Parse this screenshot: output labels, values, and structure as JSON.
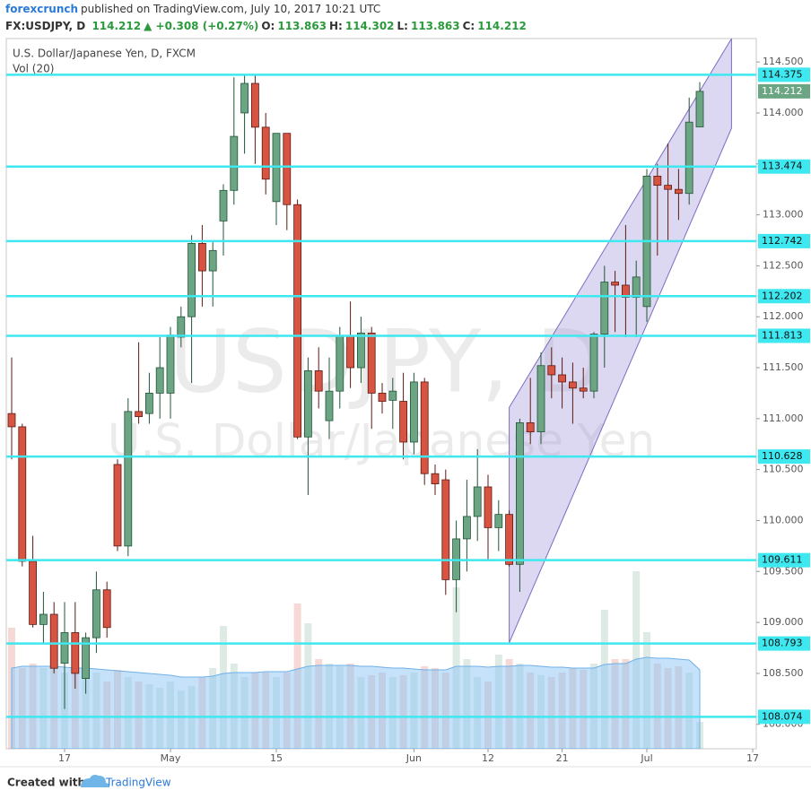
{
  "header": {
    "author": "forexcrunch",
    "published": "published on TradingView.com, July 10, 2017 10:21 UTC",
    "symbol": "FX:USDJPY, D",
    "price": "114.212",
    "change": "▲ +0.308 (+0.27%)",
    "o_label": "O:",
    "o": "113.863",
    "h_label": "H:",
    "h": "114.302",
    "l_label": "L:",
    "l": "113.863",
    "c_label": "C:",
    "c": "114.212"
  },
  "footer": {
    "created": "Created with",
    "brand": "TradingView"
  },
  "chart_data": {
    "type": "candlestick",
    "title": "U.S. Dollar/Japanese Yen, D, FXCM",
    "volume_label": "Vol (20)",
    "watermark": "USDJPY, D",
    "watermark_sub": "U.S. Dollar/Japanese Yen",
    "categories": [
      null,
      null,
      null,
      null,
      null,
      "17",
      null,
      null,
      null,
      null,
      null,
      null,
      null,
      null,
      null,
      "May",
      null,
      null,
      null,
      null,
      null,
      null,
      null,
      null,
      null,
      "15",
      null,
      null,
      null,
      null,
      null,
      null,
      null,
      null,
      null,
      null,
      null,
      null,
      "Jun",
      null,
      null,
      null,
      null,
      null,
      null,
      "12",
      null,
      null,
      null,
      null,
      null,
      null,
      "21",
      null,
      null,
      null,
      null,
      null,
      null,
      null,
      "Jul",
      null,
      null,
      null,
      null,
      null,
      null,
      null,
      null,
      null,
      "17"
    ],
    "open": [
      111.05,
      110.92,
      109.6,
      108.98,
      109.08,
      108.6,
      108.9,
      108.45,
      108.85,
      109.32,
      110.55,
      109.75,
      111.07,
      111.05,
      111.25,
      111.25,
      111.8,
      112.0,
      112.72,
      112.45,
      112.94,
      113.24,
      114.0,
      114.29,
      113.86,
      113.13,
      113.8,
      113.1,
      110.82,
      111.47,
      110.98,
      111.27,
      111.81,
      111.5,
      111.84,
      111.25,
      111.18,
      111.17,
      110.77,
      111.36,
      110.46,
      110.4,
      109.42,
      109.82,
      110.04,
      110.33,
      109.93,
      110.06,
      109.57,
      110.96,
      110.87,
      111.52,
      111.43,
      111.36,
      111.3,
      111.27,
      111.83,
      112.34,
      112.31,
      112.19,
      112.1,
      113.38,
      113.29,
      113.25,
      113.21,
      113.863,
      null,
      null,
      null,
      null,
      null
    ],
    "high": [
      111.6,
      110.95,
      109.85,
      109.3,
      109.2,
      109.2,
      109.2,
      108.9,
      109.5,
      109.4,
      110.6,
      111.2,
      111.75,
      111.45,
      111.8,
      111.9,
      112.1,
      112.8,
      112.9,
      112.75,
      113.3,
      114.35,
      114.37,
      114.37,
      114.0,
      113.8,
      113.8,
      113.15,
      111.6,
      111.7,
      111.6,
      111.9,
      112.15,
      112.0,
      111.9,
      111.35,
      111.4,
      111.45,
      111.45,
      111.4,
      110.55,
      110.5,
      110.0,
      110.4,
      110.7,
      110.45,
      110.2,
      110.1,
      111.0,
      111.4,
      111.65,
      111.7,
      111.6,
      111.55,
      111.5,
      111.85,
      112.5,
      112.45,
      112.9,
      112.55,
      113.45,
      113.5,
      113.7,
      113.45,
      114.15,
      114.302,
      null,
      null,
      null,
      null,
      null
    ],
    "low": [
      110.6,
      109.55,
      108.95,
      108.8,
      108.5,
      108.15,
      108.35,
      108.3,
      108.7,
      108.85,
      109.7,
      109.65,
      110.95,
      110.95,
      111.0,
      111.0,
      111.7,
      111.35,
      112.1,
      112.1,
      112.6,
      113.1,
      113.6,
      113.5,
      113.2,
      112.9,
      112.85,
      110.8,
      110.25,
      111.1,
      110.8,
      111.1,
      111.3,
      111.35,
      110.9,
      111.05,
      110.9,
      110.6,
      110.65,
      110.35,
      110.25,
      109.27,
      109.1,
      109.5,
      109.8,
      109.6,
      109.7,
      109.55,
      109.3,
      110.75,
      110.75,
      111.2,
      111.1,
      110.95,
      111.2,
      111.2,
      111.5,
      111.85,
      111.8,
      111.8,
      111.95,
      112.6,
      112.75,
      112.95,
      113.1,
      113.863,
      null,
      null,
      null,
      null,
      null
    ],
    "close": [
      110.92,
      109.6,
      108.98,
      109.08,
      108.55,
      108.9,
      108.5,
      108.85,
      109.32,
      108.95,
      109.75,
      111.07,
      111.02,
      111.25,
      111.5,
      111.82,
      112.0,
      112.72,
      112.45,
      112.65,
      113.24,
      113.77,
      114.29,
      113.86,
      113.35,
      113.8,
      113.1,
      110.82,
      111.47,
      111.27,
      111.27,
      111.81,
      111.5,
      111.84,
      111.25,
      111.17,
      111.27,
      110.77,
      111.36,
      110.46,
      110.36,
      109.42,
      109.82,
      110.04,
      110.33,
      109.93,
      110.06,
      109.57,
      110.96,
      110.87,
      111.52,
      111.43,
      111.36,
      111.3,
      111.27,
      111.83,
      112.34,
      112.31,
      112.19,
      112.39,
      113.38,
      113.29,
      113.25,
      113.21,
      113.91,
      114.212,
      null,
      null,
      null,
      null,
      null
    ],
    "volume": [
      135,
      90,
      95,
      90,
      90,
      85,
      90,
      90,
      85,
      75,
      88,
      80,
      75,
      72,
      68,
      75,
      65,
      70,
      80,
      90,
      137,
      95,
      80,
      85,
      85,
      80,
      85,
      162,
      140,
      100,
      95,
      92,
      95,
      80,
      82,
      85,
      80,
      82,
      85,
      92,
      90,
      85,
      180,
      100,
      80,
      75,
      105,
      100,
      95,
      85,
      82,
      80,
      85,
      90,
      88,
      95,
      155,
      100,
      100,
      198,
      130,
      95,
      90,
      92,
      85,
      30,
      null,
      null,
      null,
      null,
      null
    ],
    "volume_ma": [
      90,
      92,
      92,
      92,
      92,
      91,
      90,
      90,
      89,
      88,
      87,
      86,
      85,
      84,
      83,
      82,
      80,
      80,
      80,
      81,
      84,
      85,
      85,
      85,
      86,
      86,
      86,
      89,
      92,
      93,
      93,
      93,
      93,
      92,
      92,
      91,
      90,
      90,
      89,
      88,
      88,
      88,
      92,
      92,
      92,
      91,
      92,
      92,
      93,
      93,
      92,
      91,
      91,
      90,
      90,
      90,
      94,
      95,
      95,
      100,
      102,
      101,
      101,
      100,
      99,
      88,
      null,
      null,
      null,
      null,
      null
    ],
    "up_color": "#6ba583",
    "down_color": "#d75442",
    "level_color": "#3ee8f0",
    "channel_color": "#9b8fd6",
    "levels": [
      114.375,
      113.474,
      112.742,
      112.202,
      111.813,
      110.628,
      109.611,
      108.793,
      108.074
    ],
    "last_price": 114.212,
    "channel": {
      "x": [
        47,
        68
      ],
      "upper": [
        111.11,
        114.73
      ],
      "lower": [
        108.8,
        113.85
      ]
    },
    "ylim": [
      107.76,
      114.73
    ],
    "yticks": [
      {
        "value": 108,
        "label": "108.000"
      },
      {
        "value": 108.5,
        "label": "108.500"
      },
      {
        "value": 109,
        "label": "109.000"
      },
      {
        "value": 109.5,
        "label": "109.500"
      },
      {
        "value": 110,
        "label": "110.000"
      },
      {
        "value": 110.5,
        "label": "110.500"
      },
      {
        "value": 111,
        "label": "111.000"
      },
      {
        "value": 111.5,
        "label": "111.500"
      },
      {
        "value": 112,
        "label": "112.000"
      },
      {
        "value": 112.5,
        "label": "112.500"
      },
      {
        "value": 113,
        "label": "113.000"
      },
      {
        "value": 113.5,
        "label": "113.500"
      },
      {
        "value": 114,
        "label": "114.000"
      },
      {
        "value": 114.5,
        "label": "114.500"
      }
    ]
  }
}
